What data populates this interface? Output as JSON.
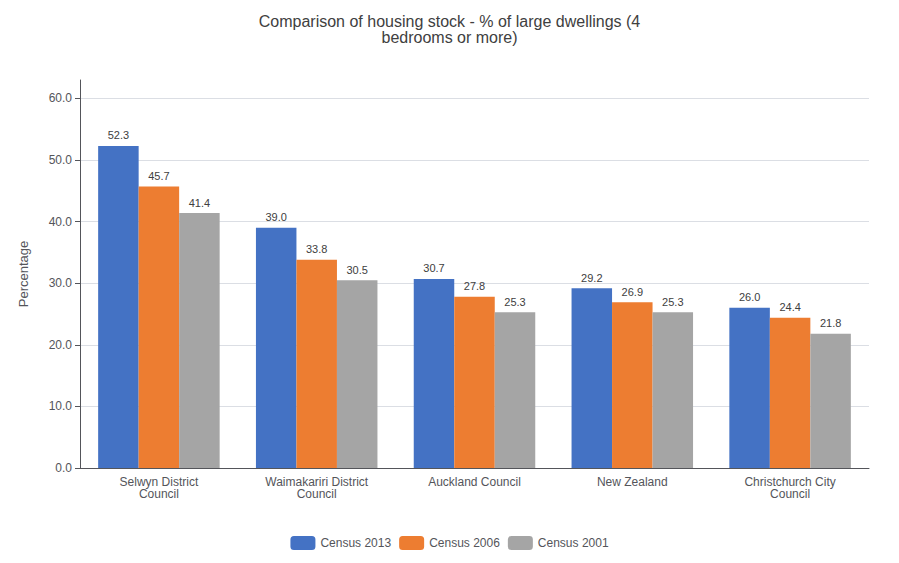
{
  "chart_data": {
    "type": "bar",
    "title": "Comparison of housing stock - % of large dwellings (4\nbedrooms or more)",
    "ylabel": "Percentage",
    "categories": [
      "Selwyn District\nCouncil",
      "Waimakariri District\nCouncil",
      "Auckland Council",
      "New Zealand",
      "Christchurch City\nCouncil"
    ],
    "series": [
      {
        "name": "Census 2013",
        "color": "#4472C4",
        "values": [
          52.3,
          39.0,
          30.7,
          29.2,
          26.0
        ],
        "value_labels": [
          "52.3",
          "39.0",
          "30.7",
          "29.2",
          "26.0"
        ]
      },
      {
        "name": "Census 2006",
        "color": "#ED7D31",
        "values": [
          45.7,
          33.8,
          27.8,
          26.9,
          24.4
        ],
        "value_labels": [
          "45.7",
          "33.8",
          "27.8",
          "26.9",
          "24.4"
        ]
      },
      {
        "name": "Census 2001",
        "color": "#A5A5A5",
        "values": [
          41.4,
          30.5,
          25.3,
          25.3,
          21.8
        ],
        "value_labels": [
          "41.4",
          "30.5",
          "25.3",
          "25.3",
          "21.8"
        ]
      }
    ],
    "ylim": [
      0,
      63
    ],
    "yticks": [
      {
        "value": 0,
        "label": "0.0"
      },
      {
        "value": 10,
        "label": "10.0"
      },
      {
        "value": 20,
        "label": "20.0"
      },
      {
        "value": 30,
        "label": "30.0"
      },
      {
        "value": 40,
        "label": "40.0"
      },
      {
        "value": 50,
        "label": "50.0"
      },
      {
        "value": 60,
        "label": "60.0"
      }
    ],
    "grid": true,
    "legend": "bottom",
    "data_labels": true
  }
}
